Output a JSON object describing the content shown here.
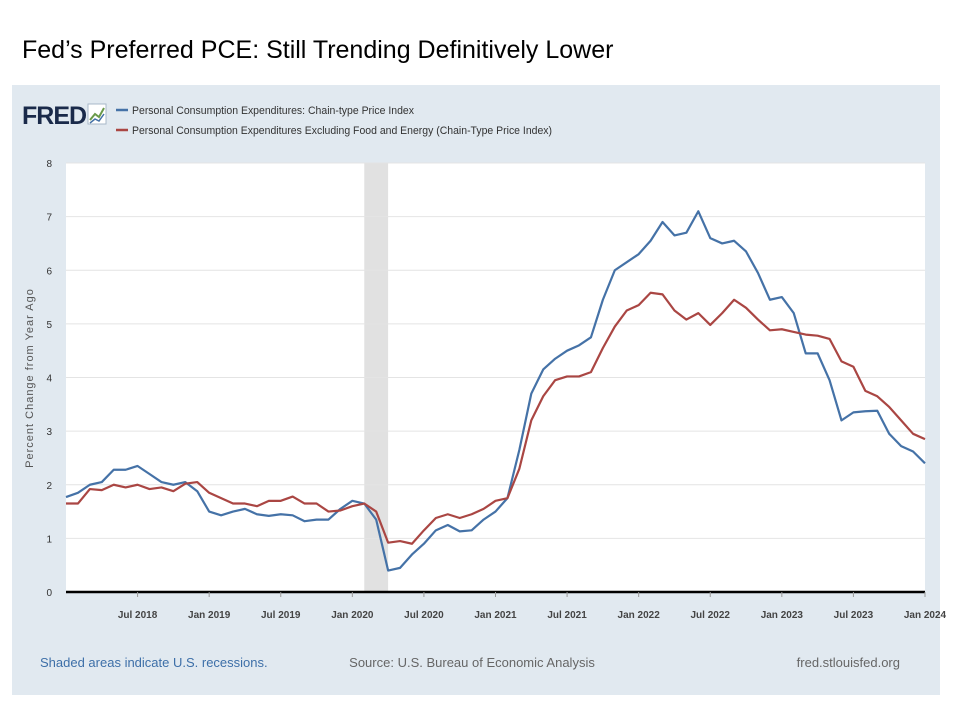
{
  "chart_data": {
    "type": "line",
    "title": "Fed’s Preferred PCE: Still Trending Definitively Lower",
    "logo": "FRED",
    "ylabel": "Percent Change from Year Ago",
    "notes": [
      "Shaded areas indicate U.S. recessions.",
      "Source: U.S. Bureau of Economic Analysis",
      "fred.stlouisfed.org"
    ],
    "x": [
      "2018-01",
      "2018-02",
      "2018-03",
      "2018-04",
      "2018-05",
      "2018-06",
      "2018-07",
      "2018-08",
      "2018-09",
      "2018-10",
      "2018-11",
      "2018-12",
      "2019-01",
      "2019-02",
      "2019-03",
      "2019-04",
      "2019-05",
      "2019-06",
      "2019-07",
      "2019-08",
      "2019-09",
      "2019-10",
      "2019-11",
      "2019-12",
      "2020-01",
      "2020-02",
      "2020-03",
      "2020-04",
      "2020-05",
      "2020-06",
      "2020-07",
      "2020-08",
      "2020-09",
      "2020-10",
      "2020-11",
      "2020-12",
      "2021-01",
      "2021-02",
      "2021-03",
      "2021-04",
      "2021-05",
      "2021-06",
      "2021-07",
      "2021-08",
      "2021-09",
      "2021-10",
      "2021-11",
      "2021-12",
      "2022-01",
      "2022-02",
      "2022-03",
      "2022-04",
      "2022-05",
      "2022-06",
      "2022-07",
      "2022-08",
      "2022-09",
      "2022-10",
      "2022-11",
      "2022-12",
      "2023-01",
      "2023-02",
      "2023-03",
      "2023-04",
      "2023-05",
      "2023-06",
      "2023-07",
      "2023-08",
      "2023-09",
      "2023-10",
      "2023-11",
      "2023-12",
      "2024-01"
    ],
    "series": [
      {
        "name": "Personal Consumption Expenditures: Chain-type Price Index",
        "color": "#4572a7",
        "values": [
          1.77,
          1.85,
          2.0,
          2.05,
          2.28,
          2.28,
          2.35,
          2.2,
          2.05,
          2.0,
          2.05,
          1.88,
          1.5,
          1.43,
          1.5,
          1.55,
          1.45,
          1.42,
          1.45,
          1.43,
          1.32,
          1.35,
          1.35,
          1.55,
          1.7,
          1.65,
          1.35,
          0.4,
          0.45,
          0.7,
          0.9,
          1.15,
          1.25,
          1.13,
          1.15,
          1.35,
          1.5,
          1.75,
          2.65,
          3.7,
          4.15,
          4.35,
          4.5,
          4.6,
          4.75,
          5.45,
          6.0,
          6.15,
          6.3,
          6.55,
          6.9,
          6.65,
          6.7,
          7.1,
          6.6,
          6.5,
          6.55,
          6.35,
          5.95,
          5.45,
          5.5,
          5.2,
          4.45,
          4.45,
          3.95,
          3.2,
          3.35,
          3.37,
          3.38,
          2.95,
          2.72,
          2.62,
          2.4
        ]
      },
      {
        "name": "Personal Consumption Expenditures Excluding Food and Energy (Chain-Type Price Index)",
        "color": "#aa4643",
        "values": [
          1.65,
          1.65,
          1.92,
          1.9,
          2.0,
          1.95,
          2.0,
          1.92,
          1.95,
          1.88,
          2.02,
          2.05,
          1.85,
          1.75,
          1.65,
          1.65,
          1.6,
          1.7,
          1.7,
          1.78,
          1.65,
          1.65,
          1.5,
          1.52,
          1.6,
          1.65,
          1.5,
          0.92,
          0.95,
          0.9,
          1.15,
          1.38,
          1.45,
          1.38,
          1.45,
          1.55,
          1.7,
          1.75,
          2.3,
          3.2,
          3.65,
          3.95,
          4.02,
          4.02,
          4.1,
          4.55,
          4.95,
          5.25,
          5.35,
          5.58,
          5.55,
          5.25,
          5.08,
          5.2,
          4.98,
          5.2,
          5.45,
          5.3,
          5.08,
          4.88,
          4.9,
          4.85,
          4.8,
          4.78,
          4.72,
          4.3,
          4.2,
          3.75,
          3.65,
          3.45,
          3.2,
          2.95,
          2.85
        ]
      }
    ],
    "xlim": [
      "2018-01",
      "2024-01"
    ],
    "xticks": [
      {
        "value": "2018-07",
        "label": "Jul 2018"
      },
      {
        "value": "2019-01",
        "label": "Jan 2019"
      },
      {
        "value": "2019-07",
        "label": "Jul 2019"
      },
      {
        "value": "2020-01",
        "label": "Jan 2020"
      },
      {
        "value": "2020-07",
        "label": "Jul 2020"
      },
      {
        "value": "2021-01",
        "label": "Jan 2021"
      },
      {
        "value": "2021-07",
        "label": "Jul 2021"
      },
      {
        "value": "2022-01",
        "label": "Jan 2022"
      },
      {
        "value": "2022-07",
        "label": "Jul 2022"
      },
      {
        "value": "2023-01",
        "label": "Jan 2023"
      },
      {
        "value": "2023-07",
        "label": "Jul 2023"
      },
      {
        "value": "2024-01",
        "label": "Jan 2024"
      }
    ],
    "ylim": [
      0,
      8
    ],
    "yticks": [
      0,
      1,
      2,
      3,
      4,
      5,
      6,
      7,
      8
    ],
    "grid": true,
    "recessions": [
      [
        "2020-02",
        "2020-04"
      ]
    ]
  }
}
